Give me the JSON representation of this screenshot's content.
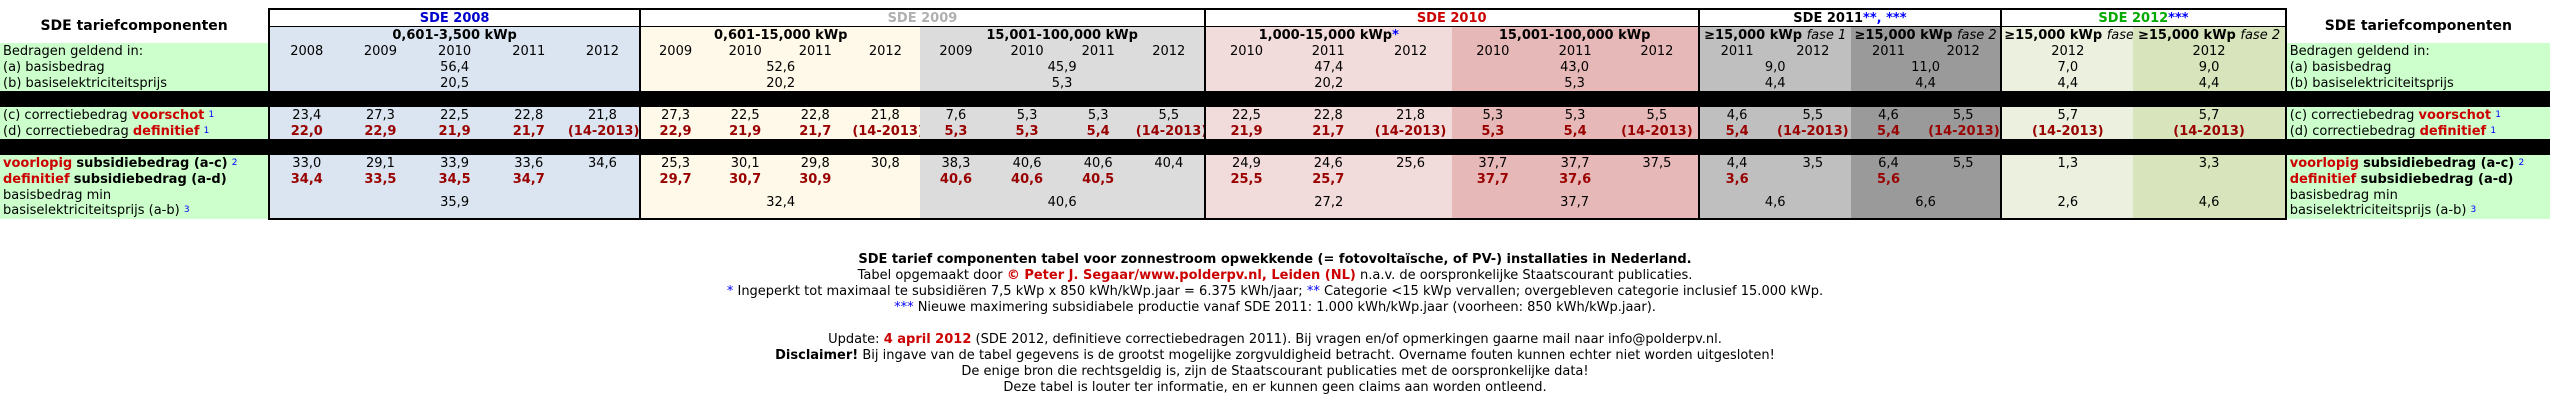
{
  "header": {
    "left_title": "SDE tariefcomponenten",
    "right_title": "SDE tariefcomponenten",
    "y2008": "SDE 2008",
    "y2009": "SDE 2009",
    "y2010": "SDE 2010",
    "y2011": "SDE 2011",
    "y2011_marks": "**, ***",
    "y2012": "SDE 2012",
    "y2012_marks": "***",
    "r08": "0,601-3,500 kWp",
    "r09a": "0,601-15,000 kWp",
    "r09b": "15,001-100,000 kWp",
    "r10a": "1,000-15,000 kWp",
    "r10a_mark": "*",
    "r10b": "15,001-100,000 kWp",
    "r11a_pre": "≥15,000 kWp",
    "r11a_fase": "fase 1",
    "r11b_pre": "≥15,000 kWp",
    "r11b_fase": "fase 2",
    "r12a_pre": "≥15,000 kWp",
    "r12a_fase": "fase 1",
    "r12b_pre": "≥15,000 kWp",
    "r12b_fase": "fase 2",
    "years08": [
      "2008",
      "2009",
      "2010",
      "2011",
      "2012"
    ],
    "years09a": [
      "2009",
      "2010",
      "2011",
      "2012"
    ],
    "years09b": [
      "2009",
      "2010",
      "2011",
      "2012"
    ],
    "years10a": [
      "2010",
      "2011",
      "2012"
    ],
    "years10b": [
      "2010",
      "2011",
      "2012"
    ],
    "years11a": [
      "2011",
      "2012"
    ],
    "years11b": [
      "2011",
      "2012"
    ],
    "years12a": "2012",
    "years12b": "2012"
  },
  "labels": {
    "bedragen": "Bedragen geldend in:",
    "a": "(a) basisbedrag",
    "b": "(b) basiselektriciteitsprijs",
    "c_pre": "(c) correctiebedrag",
    "c_word": "voorschot",
    "c_note": "1",
    "d_pre": "(d) correctiebedrag",
    "d_word": "definitief",
    "d_note": "1",
    "vl_word": "voorlopig",
    "vl_post": "subsidiebedrag (a-c)",
    "vl_note": "2",
    "df_word": "definitief",
    "df_post": "subsidiebedrag (a-d)",
    "bm1": "basisbedrag min",
    "bm2": "basiselektriciteitsprijs (a-b)",
    "bm_note": "3"
  },
  "rows": {
    "a": {
      "s08": "56,4",
      "s09a": "52,6",
      "s09b": "45,9",
      "s10a": "47,4",
      "s10b": "43,0",
      "s11a": "9,0",
      "s11b": "11,0",
      "s12a": "7,0",
      "s12b": "9,0"
    },
    "b": {
      "s08": "20,5",
      "s09a": "20,2",
      "s09b": "5,3",
      "s10a": "20,2",
      "s10b": "5,3",
      "s11a": "4,4",
      "s11b": "4,4",
      "s12a": "4,4",
      "s12b": "4,4"
    },
    "c": [
      "23,4",
      "27,3",
      "22,5",
      "22,8",
      "21,8",
      "27,3",
      "22,5",
      "22,8",
      "21,8",
      "7,6",
      "5,3",
      "5,3",
      "5,5",
      "22,5",
      "22,8",
      "21,8",
      "5,3",
      "5,3",
      "5,5",
      "4,6",
      "5,5",
      "4,6",
      "5,5",
      "5,7",
      "5,7"
    ],
    "d": [
      "22,0",
      "22,9",
      "21,9",
      "21,7",
      "(14-2013)",
      "22,9",
      "21,9",
      "21,7",
      "(14-2013)",
      "5,3",
      "5,3",
      "5,4",
      "(14-2013)",
      "21,9",
      "21,7",
      "(14-2013)",
      "5,3",
      "5,4",
      "(14-2013)",
      "5,4",
      "(14-2013)",
      "5,4",
      "(14-2013)",
      "(14-2013)",
      "(14-2013)"
    ],
    "vl": [
      "33,0",
      "29,1",
      "33,9",
      "33,6",
      "34,6",
      "25,3",
      "30,1",
      "29,8",
      "30,8",
      "38,3",
      "40,6",
      "40,6",
      "40,4",
      "24,9",
      "24,6",
      "25,6",
      "37,7",
      "37,7",
      "37,5",
      "4,4",
      "3,5",
      "6,4",
      "5,5",
      "1,3",
      "3,3"
    ],
    "df": [
      "34,4",
      "33,5",
      "34,5",
      "34,7",
      "",
      "29,7",
      "30,7",
      "30,9",
      "",
      "40,6",
      "40,6",
      "40,5",
      "",
      "25,5",
      "25,7",
      "",
      "37,7",
      "37,6",
      "",
      "3,6",
      "",
      "5,6",
      "",
      "",
      ""
    ],
    "bm": {
      "s08": "35,9",
      "s09a": "32,4",
      "s09b": "40,6",
      "s10a": "27,2",
      "s10b": "37,7",
      "s11a": "4,6",
      "s11b": "6,6",
      "s12a": "2,6",
      "s12b": "4,6"
    }
  },
  "notes": {
    "title": "SDE tarief componenten tabel voor zonnestroom opwekkende (= fotovoltaïsche, of PV-) installaties in Nederland.",
    "line2_pre": "Tabel opgemaakt door",
    "line2_author": "© Peter J. Segaar/www.polderpv.nl, Leiden (NL)",
    "line2_post": "n.a.v. de oorspronkelijke Staatscourant publicaties.",
    "n1_mark": "*",
    "n1": "Ingeperkt tot maximaal te subsidiëren 7,5 kWp x 850 kWh/kWp.jaar = 6.375 kWh/jaar;",
    "n1b_mark": "**",
    "n1b": "Categorie <15 kWp vervallen; overgebleven categorie inclusief 15.000 kWp.",
    "n2_mark": "***",
    "n2": "Nieuwe maximering subsidiabele productie vanaf SDE 2011: 1.000 kWh/kWp.jaar (voorheen: 850 kWh/kWp.jaar).",
    "upd_pre": "Update:",
    "upd_date": "4 april 2012",
    "upd_post": "(SDE 2012, definitieve correctiebedragen 2011). Bij vragen en/of opmerkingen gaarne mail naar info@polderpv.nl.",
    "disc_label": "Disclaimer!",
    "disc1": "Bij ingave van de tabel gegevens is de grootst mogelijke zorgvuldigheid betracht. Overname fouten kunnen echter niet worden uitgesloten!",
    "disc2": "De enige bron die rechtsgeldig is, zijn de Staatscourant publicaties met de oorspronkelijke data!",
    "disc3": "Deze tabel is louter ter informatie, en er kunnen geen claims aan worden ontleend."
  }
}
